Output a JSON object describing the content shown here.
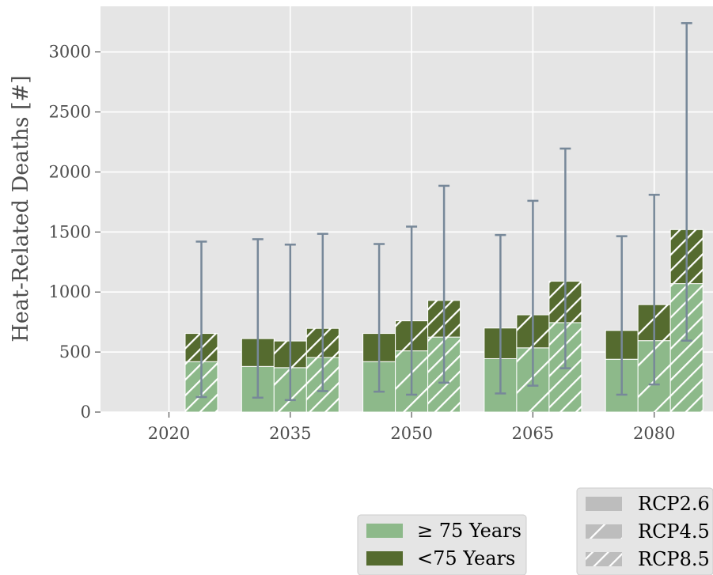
{
  "chart_data": {
    "type": "bar",
    "ylabel": "Heat-Related Deaths [#]",
    "xlabel": "",
    "ylim": [
      0,
      3380
    ],
    "yticks": [
      0,
      500,
      1000,
      1500,
      2000,
      2500,
      3000
    ],
    "grid": true,
    "categories": [
      "2020",
      "2035",
      "2050",
      "2065",
      "2080"
    ],
    "stack_legend": [
      {
        "name": "≥ 75 Years",
        "color": "#8db98a"
      },
      {
        "name": "<75 Years",
        "color": "#556b2f"
      }
    ],
    "scenario_legend": [
      {
        "name": "RCP2.6",
        "hatch": "none"
      },
      {
        "name": "RCP4.5",
        "hatch": "sparse"
      },
      {
        "name": "RCP8.5",
        "hatch": "dense"
      }
    ],
    "legend_placement": "bottom-right, outside plot",
    "colors": {
      "background": "#e5e5e5",
      "grid": "#ffffff",
      "ge75": "#8db98a",
      "lt75": "#556b2f",
      "errorbar": "#778899"
    },
    "bars": [
      {
        "category": "2020",
        "scenario": "RCP8.5",
        "ge75": 420,
        "lt75": 235,
        "err_low": 125,
        "err_high": 1420
      },
      {
        "category": "2035",
        "scenario": "RCP2.6",
        "ge75": 380,
        "lt75": 232,
        "err_low": 120,
        "err_high": 1440
      },
      {
        "category": "2035",
        "scenario": "RCP4.5",
        "ge75": 370,
        "lt75": 222,
        "err_low": 100,
        "err_high": 1395
      },
      {
        "category": "2035",
        "scenario": "RCP8.5",
        "ge75": 455,
        "lt75": 242,
        "err_low": 175,
        "err_high": 1485
      },
      {
        "category": "2050",
        "scenario": "RCP2.6",
        "ge75": 420,
        "lt75": 235,
        "err_low": 170,
        "err_high": 1400
      },
      {
        "category": "2050",
        "scenario": "RCP4.5",
        "ge75": 510,
        "lt75": 250,
        "err_low": 145,
        "err_high": 1545
      },
      {
        "category": "2050",
        "scenario": "RCP8.5",
        "ge75": 625,
        "lt75": 305,
        "err_low": 245,
        "err_high": 1885
      },
      {
        "category": "2065",
        "scenario": "RCP2.6",
        "ge75": 445,
        "lt75": 255,
        "err_low": 155,
        "err_high": 1475
      },
      {
        "category": "2065",
        "scenario": "RCP4.5",
        "ge75": 535,
        "lt75": 275,
        "err_low": 220,
        "err_high": 1760
      },
      {
        "category": "2065",
        "scenario": "RCP8.5",
        "ge75": 745,
        "lt75": 345,
        "err_low": 365,
        "err_high": 2195
      },
      {
        "category": "2080",
        "scenario": "RCP2.6",
        "ge75": 440,
        "lt75": 240,
        "err_low": 145,
        "err_high": 1465
      },
      {
        "category": "2080",
        "scenario": "RCP4.5",
        "ge75": 595,
        "lt75": 300,
        "err_low": 230,
        "err_high": 1810
      },
      {
        "category": "2080",
        "scenario": "RCP8.5",
        "ge75": 1070,
        "lt75": 450,
        "err_low": 595,
        "err_high": 3240
      }
    ]
  }
}
